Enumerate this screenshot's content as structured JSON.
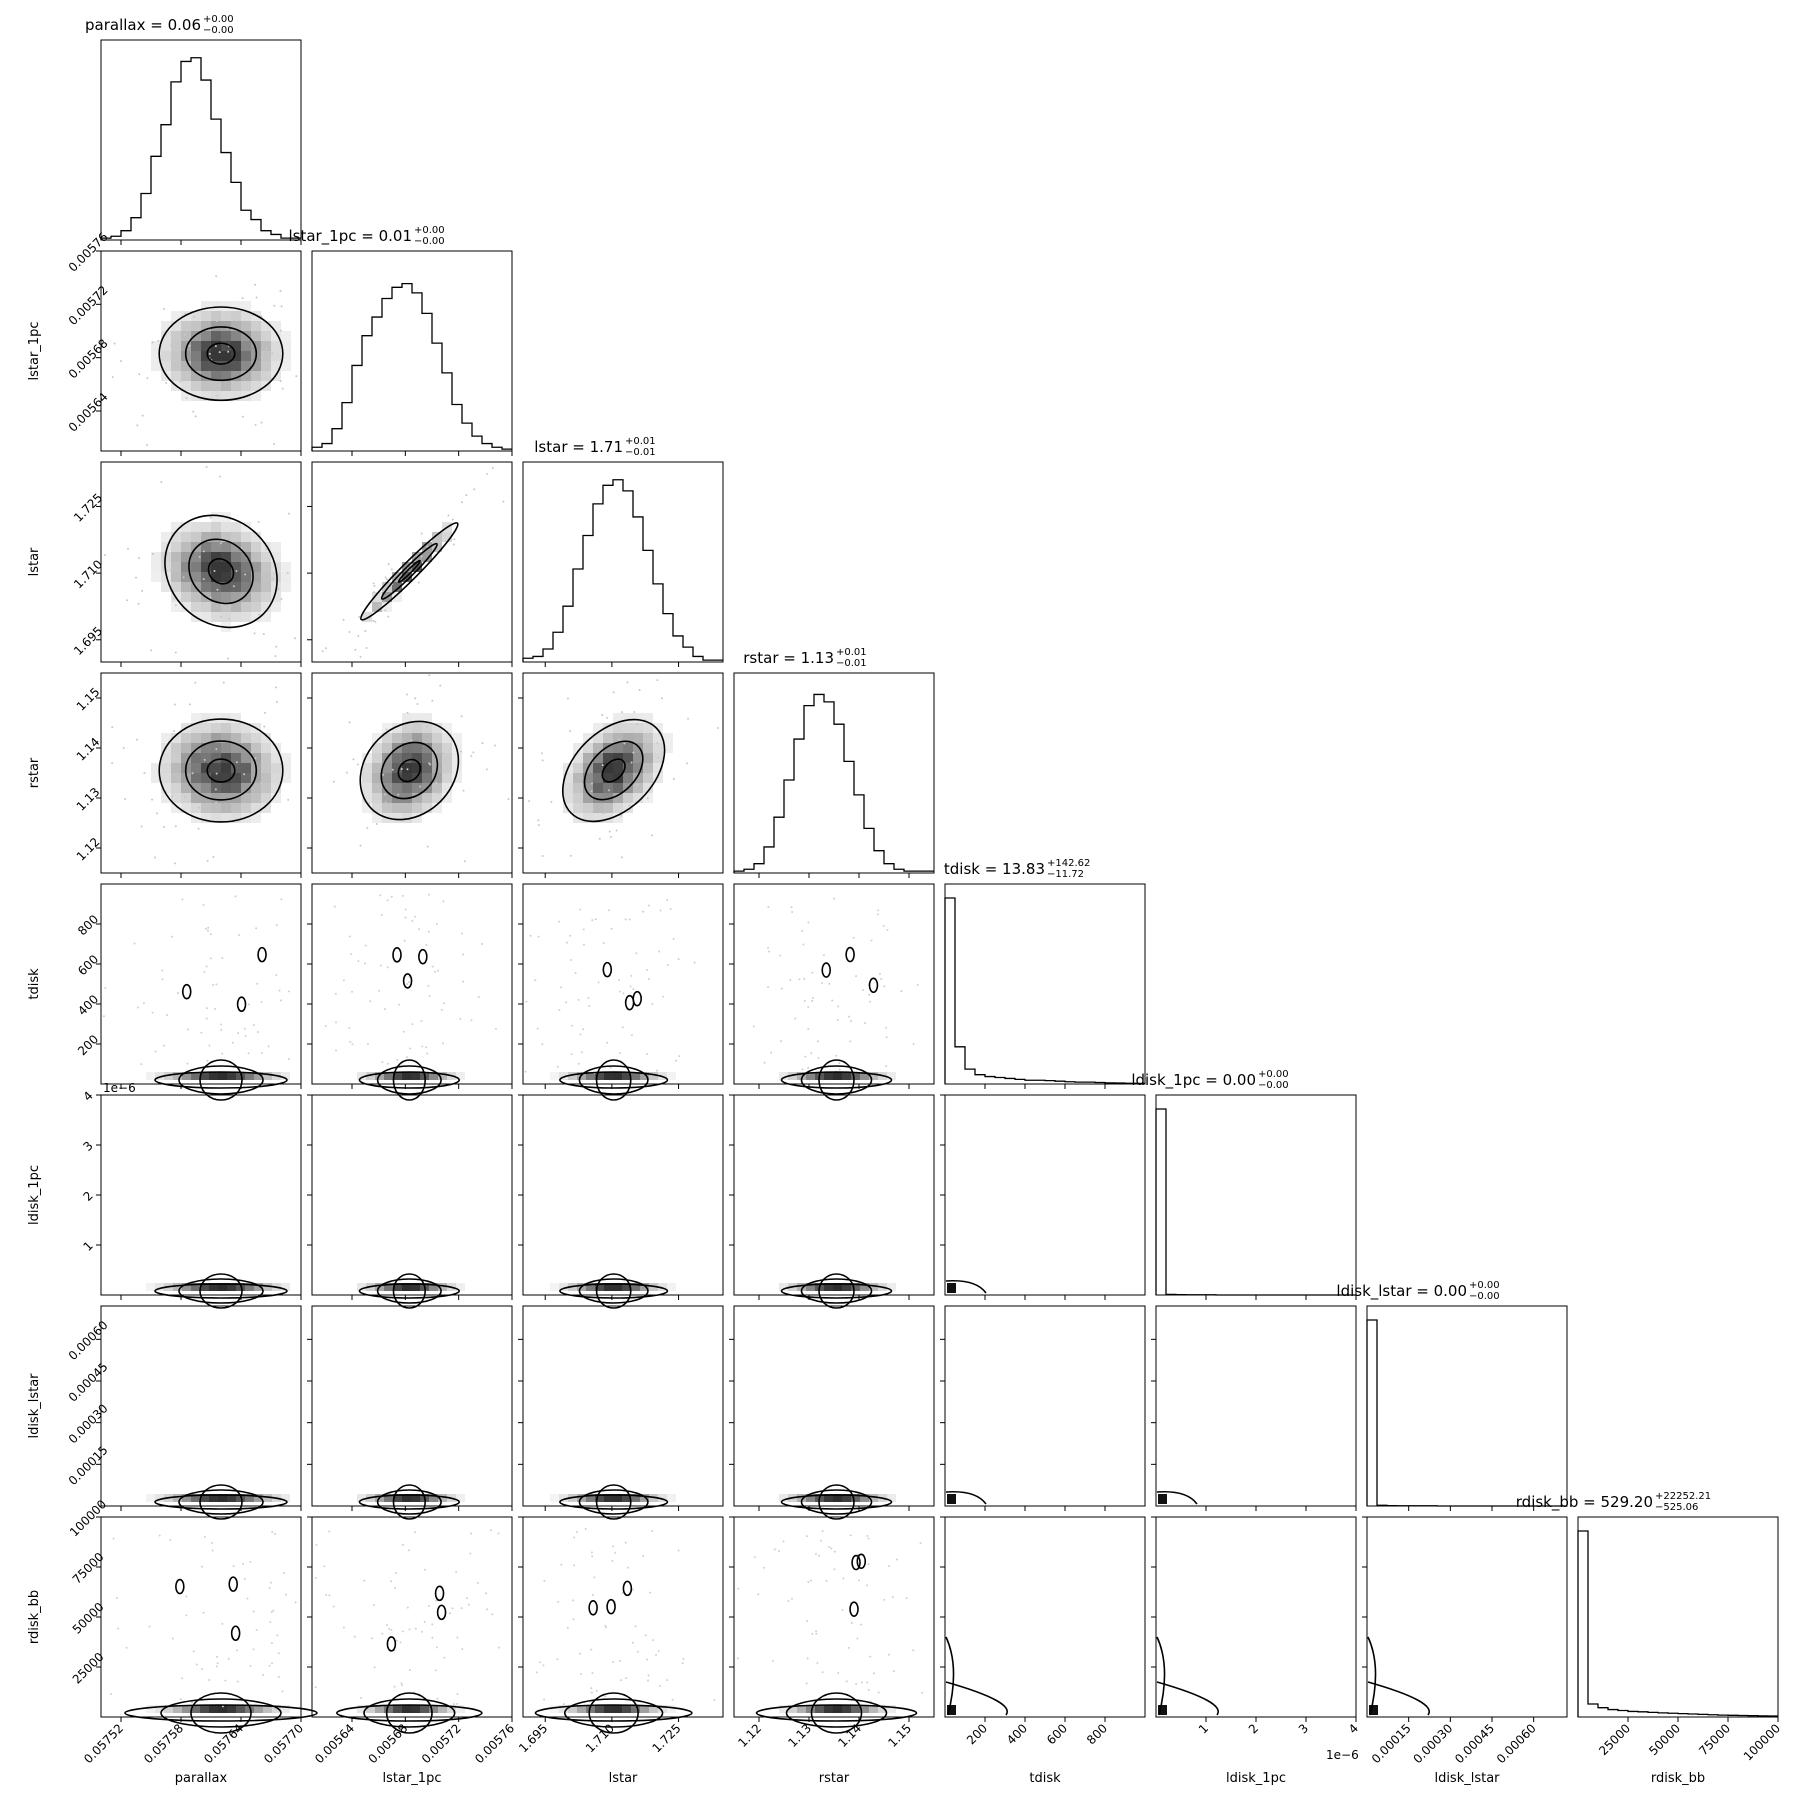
{
  "chart_data": {
    "type": "corner",
    "parameters": [
      {
        "name": "parallax",
        "range": [
          0.0575,
          0.0577
        ],
        "ticks": [
          0.05752,
          0.05758,
          0.05764,
          0.0577,
          0.05776
        ],
        "tick_labels": [
          "0.05752",
          "0.05758",
          "0.05764",
          "0.05770",
          "0.05776"
        ],
        "title": {
          "text": "parallax = 0.06",
          "sup": "+0.00",
          "sub": "−0.00"
        },
        "median": 0.05762,
        "sigma": 3e-05,
        "skew": false,
        "multiplier": ""
      },
      {
        "name": "lstar_1pc",
        "range": [
          0.00561,
          0.00576
        ],
        "ticks": [
          0.00564,
          0.00568,
          0.00572,
          0.00576
        ],
        "tick_labels": [
          "0.00564",
          "0.00568",
          "0.00572",
          "0.00576"
        ],
        "title": {
          "text": "lstar_1pc = 0.01",
          "sup": "+0.00",
          "sub": "−0.00"
        },
        "median": 0.005683,
        "sigma": 1.7e-05,
        "skew": false,
        "multiplier": ""
      },
      {
        "name": "lstar",
        "range": [
          1.69,
          1.735
        ],
        "ticks": [
          1.695,
          1.71,
          1.725
        ],
        "tick_labels": [
          "1.695",
          "1.710",
          "1.725"
        ],
        "title": {
          "text": "lstar = 1.71",
          "sup": "+0.01",
          "sub": "−0.01"
        },
        "median": 1.7104,
        "sigma": 0.0055,
        "skew": false,
        "multiplier": ""
      },
      {
        "name": "rstar",
        "range": [
          1.115,
          1.155
        ],
        "ticks": [
          1.12,
          1.13,
          1.14,
          1.15
        ],
        "tick_labels": [
          "1.12",
          "1.13",
          "1.14",
          "1.15"
        ],
        "title": {
          "text": "rstar = 1.13",
          "sup": "+0.01",
          "sub": "−0.01"
        },
        "median": 1.1355,
        "sigma": 0.005,
        "skew": false,
        "multiplier": ""
      },
      {
        "name": "tdisk",
        "range": [
          0,
          1000
        ],
        "ticks": [
          200,
          400,
          600,
          800
        ],
        "tick_labels": [
          "200",
          "400",
          "600",
          "800"
        ],
        "title": {
          "text": "tdisk = 13.83",
          "sup": "+142.62",
          "sub": "−11.72"
        },
        "median": 13.83,
        "skew": true,
        "multiplier": ""
      },
      {
        "name": "ldisk_1pc",
        "range": [
          0,
          4e-06
        ],
        "ticks": [
          1e-06,
          2e-06,
          3e-06,
          4e-06
        ],
        "tick_labels": [
          "1",
          "2",
          "3",
          "4"
        ],
        "title": {
          "text": "ldisk_1pc = 0.00",
          "sup": "+0.00",
          "sub": "−0.00"
        },
        "median": 0,
        "skew": true,
        "multiplier": "1e−6"
      },
      {
        "name": "ldisk_lstar",
        "range": [
          0,
          0.00072
        ],
        "ticks": [
          0.00015,
          0.0003,
          0.00045,
          0.0006
        ],
        "tick_labels": [
          "0.00015",
          "0.00030",
          "0.00045",
          "0.00060"
        ],
        "title": {
          "text": "ldisk_lstar = 0.00",
          "sup": "+0.00",
          "sub": "−0.00"
        },
        "median": 0,
        "skew": true,
        "multiplier": ""
      },
      {
        "name": "rdisk_bb",
        "range": [
          0,
          100000
        ],
        "ticks": [
          25000,
          50000,
          75000,
          100000
        ],
        "tick_labels": [
          "25000",
          "50000",
          "75000",
          "100000"
        ],
        "title": {
          "text": "rdisk_bb = 529.20",
          "sup": "+22252.21",
          "sub": "−525.06"
        },
        "median": 529.2,
        "skew": true,
        "multiplier": ""
      }
    ],
    "histograms": [
      [
        0.01,
        0.02,
        0.05,
        0.12,
        0.25,
        0.45,
        0.62,
        0.85,
        0.96,
        0.98,
        0.86,
        0.65,
        0.47,
        0.31,
        0.16,
        0.11,
        0.05,
        0.03,
        0.01,
        0.01
      ],
      [
        0.02,
        0.04,
        0.12,
        0.26,
        0.46,
        0.62,
        0.72,
        0.82,
        0.88,
        0.9,
        0.85,
        0.74,
        0.58,
        0.42,
        0.25,
        0.15,
        0.08,
        0.04,
        0.02,
        0.01
      ],
      [
        0.02,
        0.03,
        0.07,
        0.16,
        0.3,
        0.5,
        0.68,
        0.85,
        0.95,
        0.98,
        0.92,
        0.78,
        0.6,
        0.42,
        0.26,
        0.14,
        0.08,
        0.03,
        0.01,
        0.01
      ],
      [
        0.01,
        0.02,
        0.05,
        0.14,
        0.3,
        0.5,
        0.72,
        0.9,
        0.96,
        0.92,
        0.8,
        0.6,
        0.42,
        0.24,
        0.12,
        0.05,
        0.02,
        0.01,
        0.01,
        0.01
      ],
      [
        1.0,
        0.2,
        0.08,
        0.05,
        0.04,
        0.035,
        0.03,
        0.025,
        0.02,
        0.02,
        0.018,
        0.015,
        0.012,
        0.01,
        0.01,
        0.008,
        0.006,
        0.005,
        0.004,
        0.003
      ],
      [
        1.0,
        0.003,
        0.002,
        0.001,
        0.001,
        0.001,
        0,
        0,
        0,
        0,
        0,
        0,
        0,
        0,
        0,
        0,
        0,
        0,
        0,
        0
      ],
      [
        1.0,
        0.004,
        0.002,
        0.001,
        0.001,
        0.001,
        0.001,
        0,
        0,
        0,
        0,
        0,
        0,
        0,
        0,
        0,
        0,
        0,
        0,
        0
      ],
      [
        1.0,
        0.07,
        0.05,
        0.04,
        0.035,
        0.03,
        0.028,
        0.025,
        0.022,
        0.02,
        0.018,
        0.016,
        0.014,
        0.012,
        0.01,
        0.009,
        0.008,
        0.007,
        0.006,
        0.005
      ]
    ],
    "correlations": {
      "1-0": 0.0,
      "2-0": -0.15,
      "2-1": 0.97,
      "3-0": -0.05,
      "3-1": 0.2,
      "3-2": 0.4
    },
    "contour_levels": [
      0.12,
      0.5,
      0.9
    ],
    "grid": false,
    "legend": "none"
  }
}
